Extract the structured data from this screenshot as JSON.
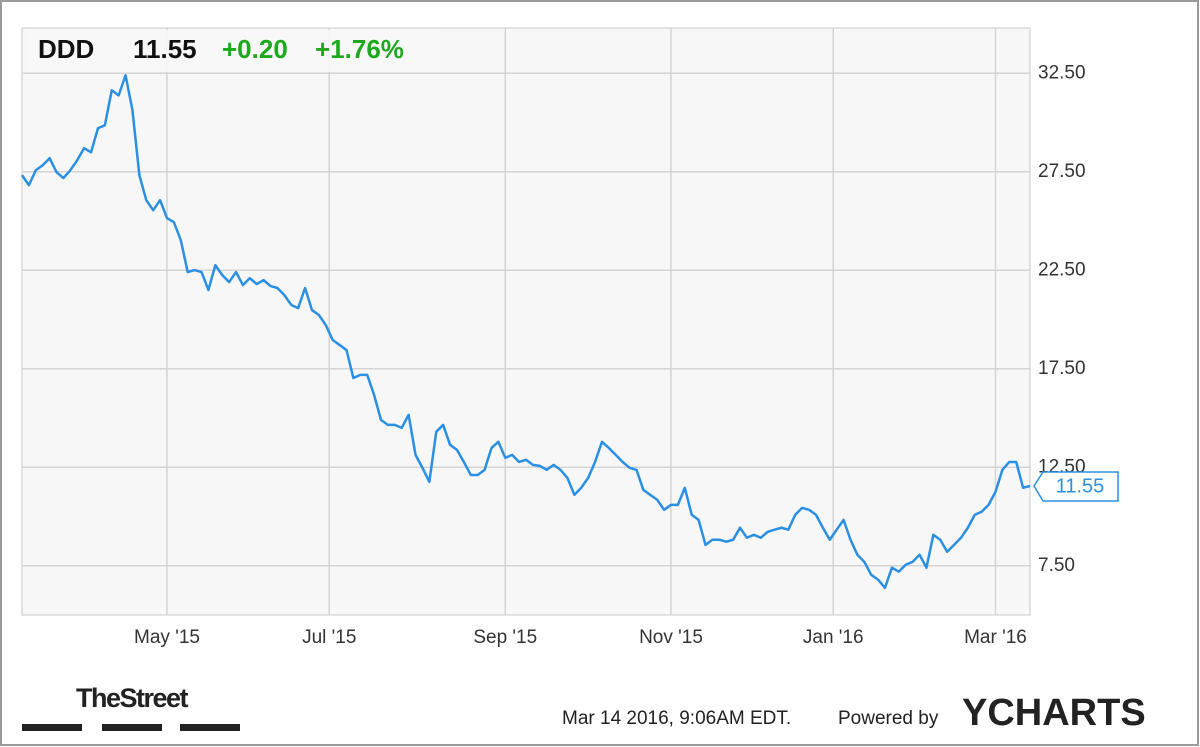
{
  "chart_data": {
    "type": "line",
    "ticker": "DDD",
    "price": "11.55",
    "change": "+0.20",
    "change_pct": "+1.76%",
    "brand_left": "TheStreet",
    "timestamp": "Mar 14 2016, 9:06AM EDT.",
    "powered_by": "Powered by",
    "brand_right": "YCHARTS",
    "grid": true,
    "xlim": [
      0,
      146
    ],
    "xticks": [
      {
        "value": 21,
        "label": "May '15"
      },
      {
        "value": 44.5,
        "label": "Jul '15"
      },
      {
        "value": 70,
        "label": "Sep '15"
      },
      {
        "value": 94,
        "label": "Nov '15"
      },
      {
        "value": 117.5,
        "label": "Jan '16"
      },
      {
        "value": 141,
        "label": "Mar '16"
      }
    ],
    "ylim": [
      5.0,
      34.8
    ],
    "yticks": [
      {
        "value": 7.5,
        "label": "7.50"
      },
      {
        "value": 12.5,
        "label": "12.50"
      },
      {
        "value": 17.5,
        "label": "17.50"
      },
      {
        "value": 22.5,
        "label": "22.50"
      },
      {
        "value": 27.5,
        "label": "27.50"
      },
      {
        "value": 32.5,
        "label": "32.50"
      }
    ],
    "series": [
      {
        "name": "DDD",
        "color": "#2b8fe3",
        "values": [
          27.33,
          26.82,
          27.58,
          27.83,
          28.19,
          27.48,
          27.18,
          27.58,
          28.09,
          28.7,
          28.49,
          29.71,
          29.86,
          31.64,
          31.38,
          32.4,
          30.62,
          27.33,
          26.06,
          25.55,
          26.06,
          25.15,
          24.94,
          24.03,
          22.41,
          22.51,
          22.41,
          21.5,
          22.76,
          22.26,
          21.9,
          22.41,
          21.75,
          22.1,
          21.8,
          22.0,
          21.7,
          21.6,
          21.24,
          20.74,
          20.58,
          21.6,
          20.48,
          20.23,
          19.72,
          18.96,
          18.71,
          18.45,
          17.03,
          17.19,
          17.19,
          16.17,
          14.9,
          14.65,
          14.65,
          14.5,
          15.16,
          13.13,
          12.47,
          11.76,
          14.3,
          14.65,
          13.64,
          13.38,
          12.77,
          12.11,
          12.11,
          12.37,
          13.48,
          13.79,
          12.98,
          13.13,
          12.77,
          12.88,
          12.62,
          12.57,
          12.37,
          12.62,
          12.37,
          11.96,
          11.1,
          11.46,
          11.96,
          12.77,
          13.79,
          13.48,
          13.13,
          12.77,
          12.47,
          12.37,
          11.35,
          11.1,
          10.85,
          10.34,
          10.59,
          10.59,
          11.46,
          10.09,
          9.83,
          8.56,
          8.82,
          8.82,
          8.72,
          8.82,
          9.43,
          8.92,
          9.07,
          8.92,
          9.22,
          9.33,
          9.43,
          9.33,
          10.09,
          10.44,
          10.34,
          10.09,
          9.43,
          8.82,
          9.33,
          9.83,
          8.82,
          8.06,
          7.7,
          7.04,
          6.79,
          6.38,
          7.4,
          7.2,
          7.55,
          7.7,
          8.06,
          7.4,
          9.07,
          8.82,
          8.21,
          8.56,
          8.92,
          9.43,
          10.09,
          10.24,
          10.59,
          11.25,
          12.37,
          12.77,
          12.77,
          11.46,
          11.55
        ]
      }
    ]
  }
}
